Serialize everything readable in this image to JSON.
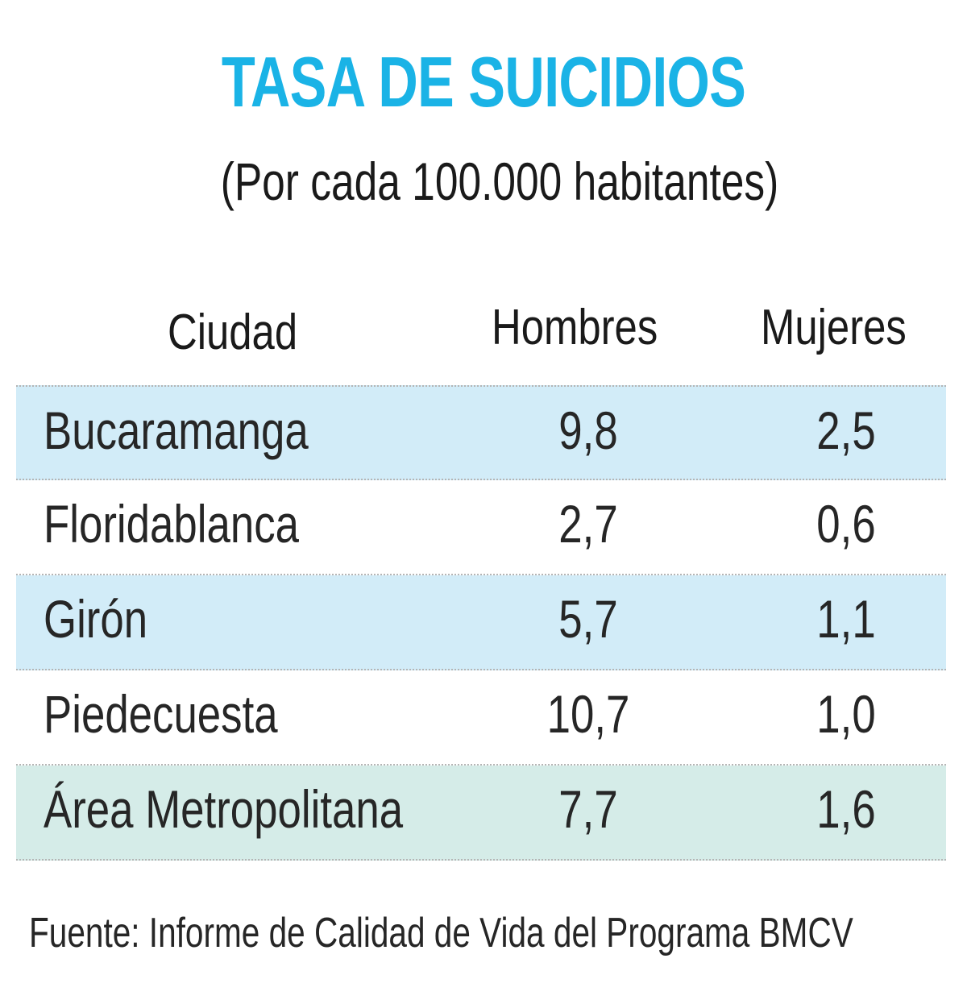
{
  "chart_data": {
    "type": "table",
    "title": "TASA DE SUICIDIOS",
    "subtitle": "(Por cada 100.000 habitantes)",
    "columns": [
      "Ciudad",
      "Hombres",
      "Mujeres"
    ],
    "rows": [
      {
        "city": "Bucaramanga",
        "men": "9,8",
        "women": "2,5",
        "shade": "#d2ecf8"
      },
      {
        "city": "Floridablanca",
        "men": "2,7",
        "women": "0,6",
        "shade": "#ffffff"
      },
      {
        "city": "Girón",
        "men": "5,7",
        "women": "1,1",
        "shade": "#d2ecf8"
      },
      {
        "city": "Piedecuesta",
        "men": "10,7",
        "women": "1,0",
        "shade": "#ffffff"
      },
      {
        "city": "Área Metropolitana",
        "men": "7,7",
        "women": "1,6",
        "shade": "#d5ece8"
      }
    ],
    "source": "Fuente: Informe de Calidad de Vida del Programa BMCV"
  },
  "colors": {
    "title": "#1ab3e6",
    "row_blue": "#d2ecf8",
    "row_mint": "#d5ece8",
    "text": "#1a1a1a"
  }
}
